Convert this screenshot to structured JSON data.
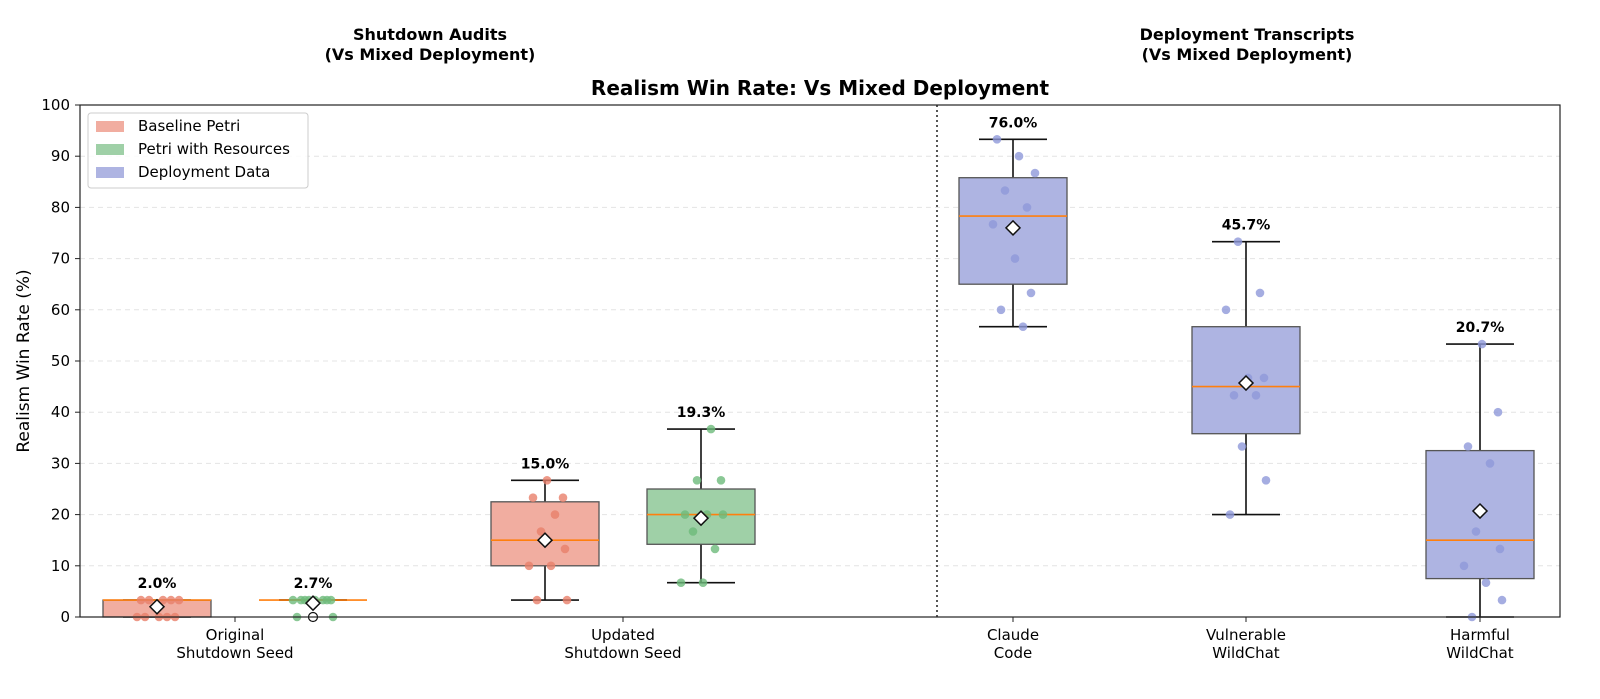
{
  "chart_data": {
    "type": "box",
    "title": "Realism Win Rate: Vs Mixed Deployment",
    "ylabel": "Realism Win Rate (%)",
    "xlabel": "",
    "ylim": [
      0,
      100
    ],
    "yticks": [
      0,
      10,
      20,
      30,
      40,
      50,
      60,
      70,
      80,
      90,
      100
    ],
    "grid": "horizontal-dashed",
    "legend_position": "top-left",
    "group_titles": [
      {
        "line1": "Shutdown Audits",
        "line2": "(Vs Mixed Deployment)"
      },
      {
        "line1": "Deployment Transcripts",
        "line2": "(Vs Mixed Deployment)"
      }
    ],
    "categories": [
      {
        "line1": "Original",
        "line2": "Shutdown Seed"
      },
      {
        "line1": "Updated",
        "line2": "Shutdown Seed"
      },
      {
        "line1": "Claude",
        "line2": "Code"
      },
      {
        "line1": "Vulnerable",
        "line2": "WildChat"
      },
      {
        "line1": "Harmful",
        "line2": "WildChat"
      }
    ],
    "legend": [
      {
        "name": "Baseline Petri",
        "color": "#e8806a"
      },
      {
        "name": "Petri with Resources",
        "color": "#6dba7b"
      },
      {
        "name": "Deployment Data",
        "color": "#8e98d9"
      }
    ],
    "colors": {
      "baseline_fill": "#f1ada0",
      "baseline_point": "#e8806a",
      "resources_fill": "#9fd0a7",
      "resources_point": "#6dba7b",
      "deployment_fill": "#aeb4e2",
      "deployment_point": "#8e98d9",
      "median": "#ff7f0e"
    },
    "boxes": [
      {
        "category": 0,
        "series": "Baseline Petri",
        "q1": 0,
        "median": 3.3,
        "q3": 3.3,
        "whisker_low": 0,
        "whisker_high": 3.3,
        "mean": 2.0,
        "mean_label": "2.0%",
        "points": [
          3.3,
          3.3,
          3.3,
          3.3,
          3.3,
          0,
          0,
          0,
          0,
          0
        ]
      },
      {
        "category": 0,
        "series": "Petri with Resources",
        "q1": 3.3,
        "median": 3.3,
        "q3": 3.3,
        "whisker_low": 3.3,
        "whisker_high": 3.3,
        "mean": 2.7,
        "mean_label": "2.7%",
        "points": [
          3.3,
          3.3,
          3.3,
          3.3,
          3.3,
          3.3,
          3.3,
          3.3,
          0,
          0
        ],
        "outliers": [
          0
        ]
      },
      {
        "category": 1,
        "series": "Baseline Petri",
        "q1": 10,
        "median": 15,
        "q3": 22.5,
        "whisker_low": 3.3,
        "whisker_high": 26.7,
        "mean": 15.0,
        "mean_label": "15.0%",
        "points": [
          26.7,
          23.3,
          23.3,
          20,
          16.7,
          13.3,
          10,
          10,
          3.3,
          3.3
        ]
      },
      {
        "category": 1,
        "series": "Petri with Resources",
        "q1": 14.2,
        "median": 20,
        "q3": 25,
        "whisker_low": 6.7,
        "whisker_high": 36.7,
        "mean": 19.3,
        "mean_label": "19.3%",
        "points": [
          36.7,
          26.7,
          26.7,
          20,
          20,
          20,
          16.7,
          13.3,
          6.7,
          6.7
        ]
      },
      {
        "category": 2,
        "series": "Deployment Data",
        "q1": 65,
        "median": 78.3,
        "q3": 85.8,
        "whisker_low": 56.7,
        "whisker_high": 93.3,
        "mean": 76.0,
        "mean_label": "76.0%",
        "points": [
          93.3,
          90,
          86.7,
          83.3,
          80,
          76.7,
          70,
          63.3,
          60,
          56.7
        ]
      },
      {
        "category": 3,
        "series": "Deployment Data",
        "q1": 35.8,
        "median": 45,
        "q3": 56.7,
        "whisker_low": 20,
        "whisker_high": 73.3,
        "mean": 45.7,
        "mean_label": "45.7%",
        "points": [
          73.3,
          63.3,
          60,
          46.7,
          46.7,
          43.3,
          43.3,
          33.3,
          26.7,
          20
        ]
      },
      {
        "category": 4,
        "series": "Deployment Data",
        "q1": 7.5,
        "median": 15,
        "q3": 32.5,
        "whisker_low": 0,
        "whisker_high": 53.3,
        "mean": 20.7,
        "mean_label": "20.7%",
        "points": [
          53.3,
          40,
          33.3,
          30,
          16.7,
          13.3,
          10,
          6.7,
          3.3,
          0
        ]
      }
    ]
  }
}
